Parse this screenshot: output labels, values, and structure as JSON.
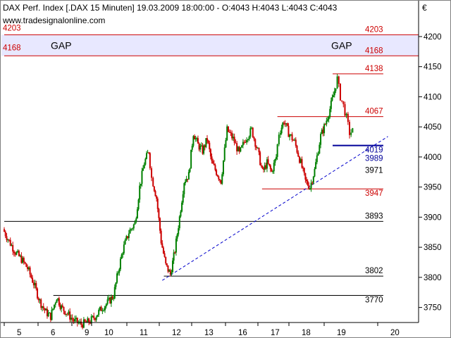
{
  "header": {
    "title": "DAX Perf. Index [.DAX  15 Minuten] 19.03.2009 18:00:00 - O:4043 H:4043 L:4043 C:4043",
    "source": "www.tradesignalonline.com",
    "currency": "€"
  },
  "colors": {
    "up": "#008000",
    "down": "#cc0000",
    "gap_band": "#e8e8ff",
    "resistance": "#cc0000",
    "support": "#000000",
    "trend": "#0000cc",
    "blue_level": "#000099"
  },
  "chart_data": {
    "type": "candlestick",
    "title": "DAX Perf. Index [.DAX  15 Minuten]",
    "ylim": [
      3725,
      4235
    ],
    "yticks": [
      3750,
      3800,
      3850,
      3900,
      3950,
      4000,
      4050,
      4100,
      4150,
      4200
    ],
    "ytick_labels": [
      "3750",
      "3800",
      "3850",
      "3900",
      "3950",
      "4000",
      "4050",
      "4100",
      "4150",
      "4200"
    ],
    "xlim": [
      0,
      13.5
    ],
    "day_labels": [
      "5",
      "6",
      "9",
      "10",
      "11",
      "12",
      "13",
      "16",
      "17",
      "18",
      "19",
      "20"
    ],
    "grid": false,
    "gap_zone": {
      "from": 4168,
      "to": 4203,
      "labels": [
        "GAP",
        "GAP"
      ]
    },
    "levels": [
      {
        "value": 4203,
        "label": "4203",
        "x_start": 0,
        "x_end": 13.5,
        "color": "#cc0000"
      },
      {
        "value": 4168,
        "label": "4168",
        "x_start": 0,
        "x_end": 13.5,
        "color": "#cc0000"
      },
      {
        "value": 4138,
        "label": "4138",
        "x_start": 10.7,
        "x_end": 12.35,
        "color": "#cc0000"
      },
      {
        "value": 4067,
        "label": "4067",
        "x_start": 8.9,
        "x_end": 12.35,
        "color": "#cc0000"
      },
      {
        "value": 4019,
        "label": "4019",
        "x_start": 10.7,
        "x_end": 12.35,
        "color": "#000099",
        "thick": true
      },
      {
        "value": 3989,
        "label": "3989",
        "x_start": null,
        "x_end": null,
        "color": "#000099"
      },
      {
        "value": 3971,
        "label": "3971",
        "x_start": null,
        "x_end": null,
        "color": "#000000"
      },
      {
        "value": 3947,
        "label": "3947",
        "x_start": 8.4,
        "x_end": 12.35,
        "color": "#cc0000"
      },
      {
        "value": 3893,
        "label": "3893",
        "x_start": 0,
        "x_end": 12.35,
        "color": "#000000"
      },
      {
        "value": 3802,
        "label": "3802",
        "x_start": 5.2,
        "x_end": 12.35,
        "color": "#000000"
      },
      {
        "value": 3770,
        "label": "3770",
        "x_start": 1.6,
        "x_end": 12.35,
        "color": "#000000"
      }
    ],
    "trendline": {
      "x1": 5.15,
      "y1": 3795,
      "x2": 12.5,
      "y2": 4034
    },
    "price_path": [
      [
        0.0,
        3880
      ],
      [
        0.2,
        3860
      ],
      [
        0.4,
        3842
      ],
      [
        0.6,
        3830
      ],
      [
        0.8,
        3815
      ],
      [
        1.0,
        3790
      ],
      [
        1.2,
        3760
      ],
      [
        1.4,
        3742
      ],
      [
        1.55,
        3735
      ],
      [
        1.75,
        3768
      ],
      [
        1.9,
        3750
      ],
      [
        2.1,
        3740
      ],
      [
        2.3,
        3728
      ],
      [
        2.55,
        3722
      ],
      [
        2.8,
        3726
      ],
      [
        3.0,
        3735
      ],
      [
        3.2,
        3748
      ],
      [
        3.45,
        3760
      ],
      [
        3.6,
        3770
      ],
      [
        3.75,
        3810
      ],
      [
        3.9,
        3845
      ],
      [
        4.1,
        3875
      ],
      [
        4.3,
        3890
      ],
      [
        4.45,
        3950
      ],
      [
        4.6,
        3990
      ],
      [
        4.75,
        4010
      ],
      [
        4.85,
        3965
      ],
      [
        5.0,
        3932
      ],
      [
        5.15,
        3860
      ],
      [
        5.3,
        3820
      ],
      [
        5.45,
        3805
      ],
      [
        5.6,
        3845
      ],
      [
        5.75,
        3900
      ],
      [
        5.9,
        3960
      ],
      [
        6.05,
        3970
      ],
      [
        6.2,
        4040
      ],
      [
        6.35,
        4020
      ],
      [
        6.5,
        4010
      ],
      [
        6.65,
        4030
      ],
      [
        6.8,
        3990
      ],
      [
        6.95,
        3975
      ],
      [
        7.1,
        3960
      ],
      [
        7.3,
        4045
      ],
      [
        7.5,
        4030
      ],
      [
        7.7,
        4005
      ],
      [
        7.9,
        4030
      ],
      [
        8.1,
        4045
      ],
      [
        8.3,
        4010
      ],
      [
        8.45,
        3975
      ],
      [
        8.6,
        3990
      ],
      [
        8.75,
        3975
      ],
      [
        8.9,
        4000
      ],
      [
        9.0,
        4040
      ],
      [
        9.15,
        4060
      ],
      [
        9.3,
        4040
      ],
      [
        9.5,
        4025
      ],
      [
        9.7,
        3990
      ],
      [
        9.85,
        3960
      ],
      [
        10.0,
        3950
      ],
      [
        10.15,
        3978
      ],
      [
        10.35,
        4035
      ],
      [
        10.5,
        4055
      ],
      [
        10.65,
        4080
      ],
      [
        10.8,
        4110
      ],
      [
        10.9,
        4130
      ],
      [
        11.0,
        4100
      ],
      [
        11.1,
        4085
      ],
      [
        11.2,
        4065
      ],
      [
        11.3,
        4040
      ],
      [
        11.4,
        4043
      ]
    ]
  }
}
